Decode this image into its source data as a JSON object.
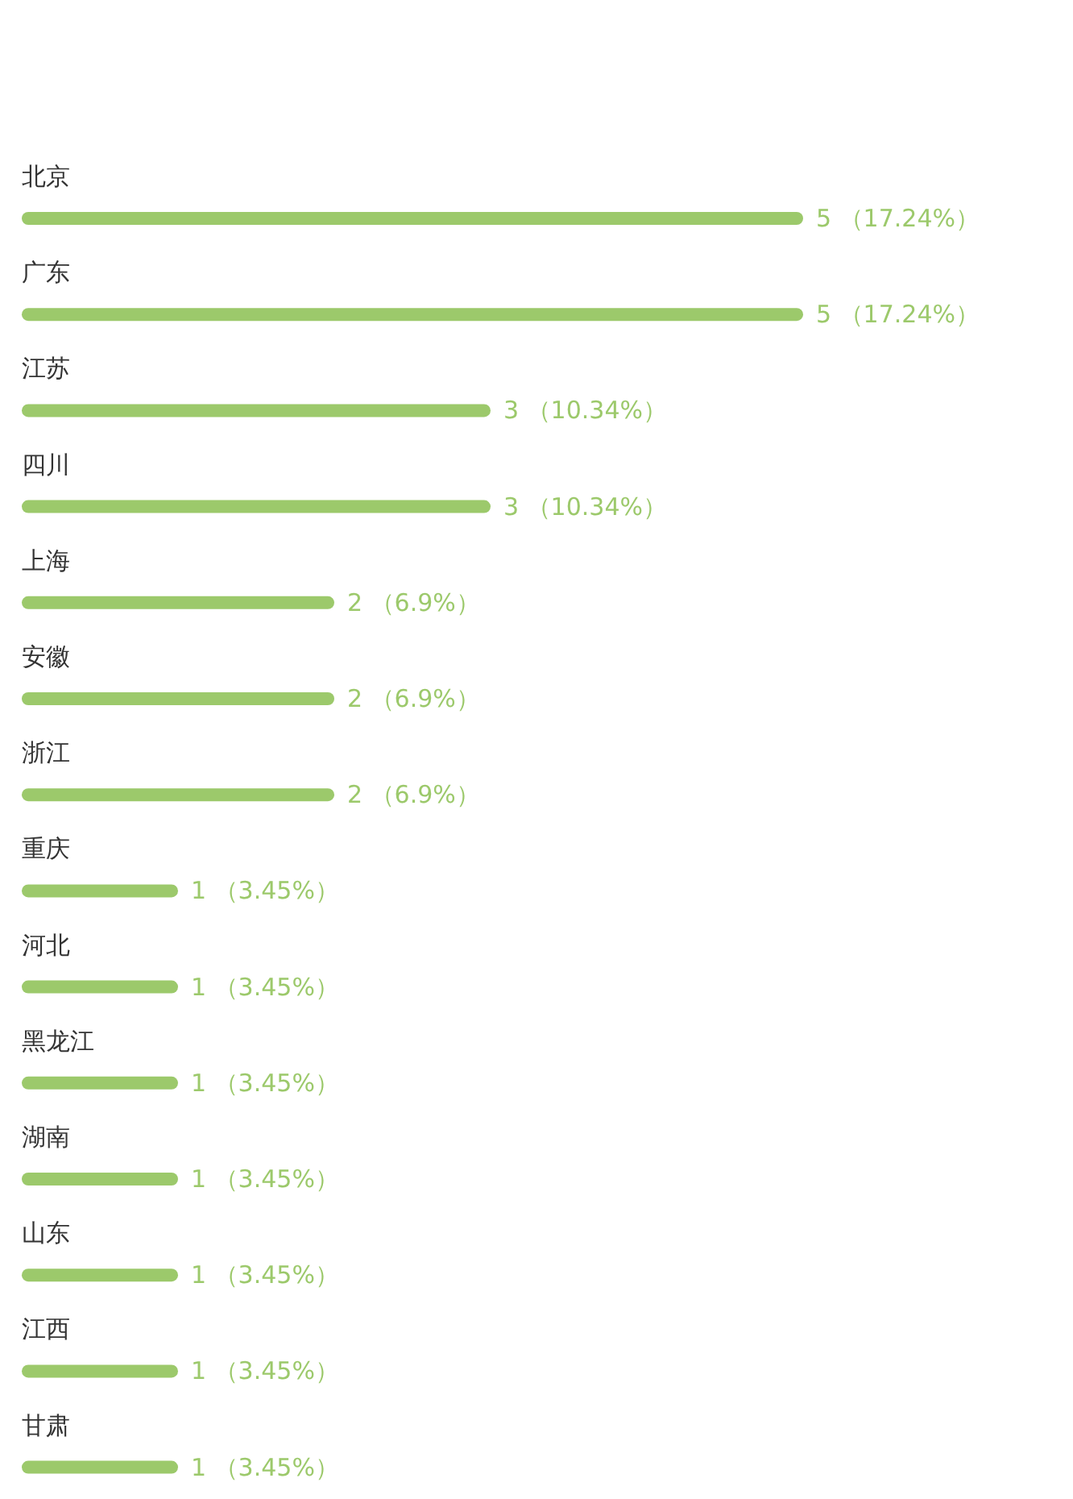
{
  "chart_data": {
    "type": "bar",
    "orientation": "horizontal",
    "color": "#9cc96b",
    "categories": [
      "北京",
      "广东",
      "江苏",
      "四川",
      "上海",
      "安徽",
      "浙江",
      "重庆",
      "河北",
      "黑龙江",
      "湖南",
      "山东",
      "江西",
      "甘肃"
    ],
    "values": [
      5,
      5,
      3,
      3,
      2,
      2,
      2,
      1,
      1,
      1,
      1,
      1,
      1,
      1
    ],
    "value_labels": [
      "5 （17.24%）",
      "5 （17.24%）",
      "3 （10.34%）",
      "3 （10.34%）",
      "2 （6.9%）",
      "2 （6.9%）",
      "2 （6.9%）",
      "1 （3.45%）",
      "1 （3.45%）",
      "1 （3.45%）",
      "1 （3.45%）",
      "1 （3.45%）",
      "1 （3.45%）",
      "1 （3.45%）"
    ]
  }
}
